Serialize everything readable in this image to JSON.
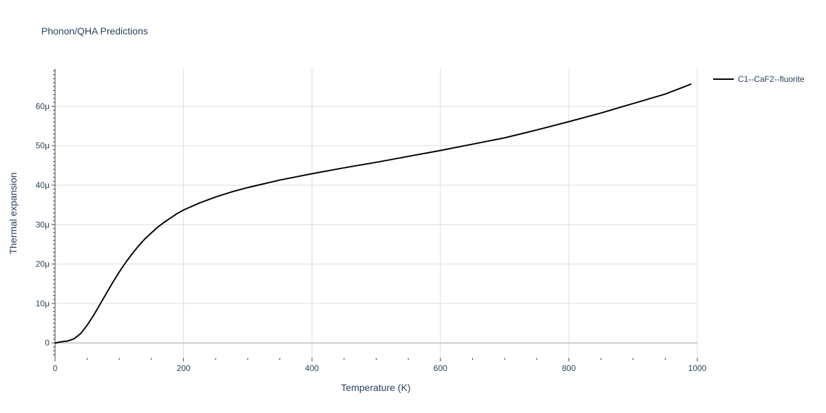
{
  "chart_data": {
    "type": "line",
    "title": "Phonon/QHA Predictions",
    "xlabel": "Temperature (K)",
    "ylabel": "Thermal expansion",
    "xlim": [
      0,
      1000
    ],
    "ylim": [
      -3.8,
      69.5
    ],
    "x_ticks": [
      0,
      200,
      400,
      600,
      800,
      1000
    ],
    "x_tick_labels": [
      "0",
      "200",
      "400",
      "600",
      "800",
      "1000"
    ],
    "y_ticks": [
      0,
      10,
      20,
      30,
      40,
      50,
      60
    ],
    "y_tick_labels": [
      "0",
      "10μ",
      "20μ",
      "30μ",
      "40μ",
      "50μ",
      "60μ"
    ],
    "grid": true,
    "legend": "top-right",
    "colors": {
      "grid": "#dddddd",
      "zeroline": "#cccccc",
      "axis": "#444444",
      "text": "#2a3f5f",
      "series": "#000000"
    },
    "series": [
      {
        "name": "C1--CaF2--fluorite",
        "x": [
          0,
          10,
          20,
          30,
          40,
          50,
          60,
          70,
          80,
          90,
          100,
          110,
          120,
          130,
          140,
          150,
          160,
          170,
          180,
          190,
          200,
          225,
          250,
          275,
          300,
          350,
          400,
          450,
          500,
          550,
          600,
          650,
          700,
          750,
          800,
          850,
          900,
          950,
          990
        ],
        "y": [
          0,
          0.3,
          0.5,
          1.1,
          2.4,
          4.5,
          7.0,
          9.8,
          12.6,
          15.4,
          18.0,
          20.4,
          22.6,
          24.6,
          26.4,
          27.9,
          29.4,
          30.6,
          31.7,
          32.8,
          33.7,
          35.5,
          37.0,
          38.3,
          39.4,
          41.3,
          42.9,
          44.4,
          45.8,
          47.3,
          48.8,
          50.4,
          52.0,
          54.0,
          56.1,
          58.3,
          60.7,
          63.1,
          65.6
        ]
      }
    ]
  }
}
